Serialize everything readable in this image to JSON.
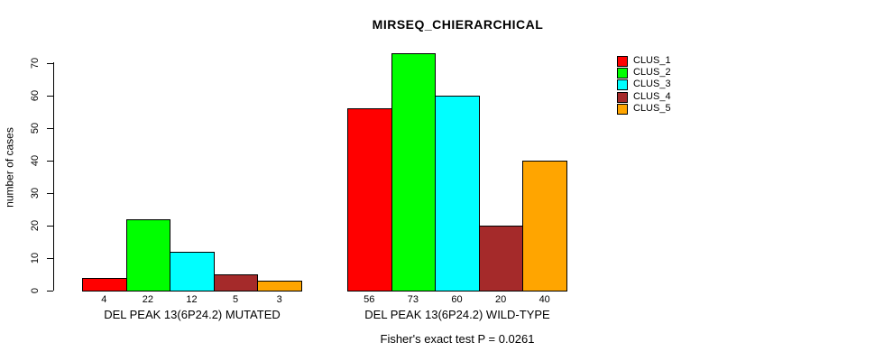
{
  "chart_data": {
    "type": "bar",
    "title": "MIRSEQ_CHIERARCHICAL",
    "xlabel": "",
    "ylabel": "number of cases",
    "ylim": [
      0,
      70
    ],
    "yticks": [
      0,
      10,
      20,
      30,
      40,
      50,
      60,
      70
    ],
    "grid": false,
    "bar_value_labels_shown": true,
    "legend_position": "top-right",
    "categories": [
      "DEL PEAK 13(6P24.2) MUTATED",
      "DEL PEAK 13(6P24.2) WILD-TYPE"
    ],
    "series": [
      {
        "name": "CLUS_1",
        "color": "#ff0000",
        "values": [
          4,
          56
        ]
      },
      {
        "name": "CLUS_2",
        "color": "#00ff00",
        "values": [
          22,
          73
        ]
      },
      {
        "name": "CLUS_3",
        "color": "#00ffff",
        "values": [
          12,
          60
        ]
      },
      {
        "name": "CLUS_4",
        "color": "#a52a2a",
        "values": [
          5,
          20
        ]
      },
      {
        "name": "CLUS_5",
        "color": "#ffa500",
        "values": [
          3,
          40
        ]
      }
    ],
    "annotation": "Fisher's exact test P = 0.0261"
  },
  "colors": {
    "background": "#ffffff",
    "axis": "#000000",
    "bar_border": "#000000"
  }
}
